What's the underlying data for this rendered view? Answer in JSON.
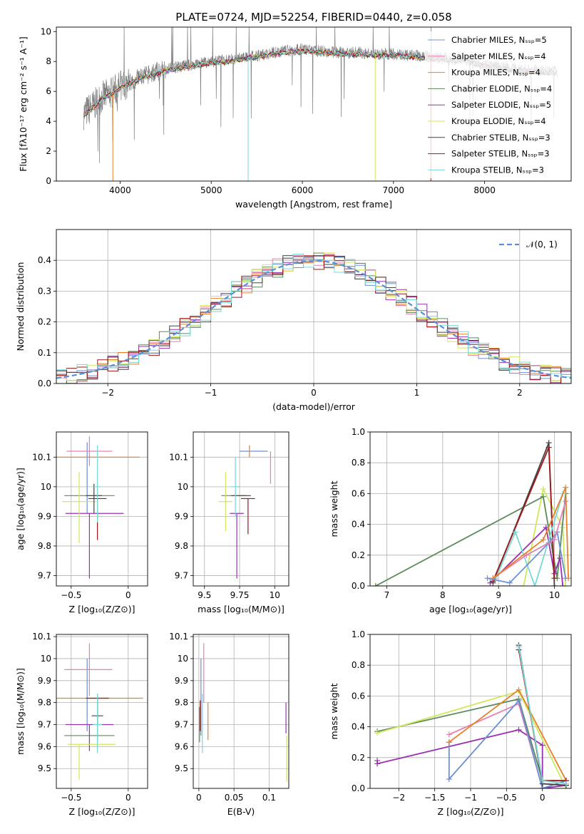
{
  "figure": {
    "title": "PLATE=0724, MJD=52254, FIBERID=0440, z=0.058"
  },
  "colors": {
    "Chabrier MILES": "#6b8fd6",
    "Salpeter MILES": "#e87fb0",
    "Kroupa MILES": "#e8802a",
    "Chabrier ELODIE": "#5b8a5b",
    "Salpeter ELODIE": "#9b30b0",
    "Kroupa ELODIE": "#cfe85a",
    "Chabrier STELIB": "#444444",
    "Salpeter STELIB": "#a01818",
    "Kroupa STELIB": "#78d8d8",
    "data": "#808080"
  },
  "chart_data": [
    {
      "id": "spectrum",
      "type": "line",
      "xlabel": "wavelength [Angstrom, rest frame]",
      "ylabel": "Flux [fλ10⁻¹⁷ erg cm⁻² s⁻¹ A⁻¹]",
      "xlim": [
        3300,
        8950
      ],
      "ylim": [
        0,
        10.3
      ],
      "xticks": [
        4000,
        5000,
        6000,
        7000,
        8000
      ],
      "yticks": [
        0,
        2,
        4,
        6,
        8,
        10
      ],
      "legend_loc": "right",
      "legend": [
        "Chabrier MILES, Nₛₛₚ=5",
        "Salpeter MILES, Nₛₛₚ=4",
        "Kroupa MILES, Nₛₛₚ=4",
        "Chabrier ELODIE, Nₛₛₚ=4",
        "Salpeter ELODIE, Nₛₛₚ=5",
        "Kroupa ELODIE, Nₛₛₚ=4",
        "Chabrier STELIB, Nₛₛₚ=3",
        "Salpeter STELIB, Nₛₛₚ=3",
        "Kroupa STELIB, Nₛₛₚ=3"
      ],
      "data_curve": {
        "x": [
          3600,
          3700,
          3800,
          3900,
          4000,
          4100,
          4200,
          4300,
          4400,
          4500,
          4600,
          4800,
          5000,
          5200,
          5400,
          5600,
          5800,
          6000,
          6200,
          6400,
          6600,
          6800,
          7000,
          7200,
          7400,
          7600,
          7800,
          8000,
          8200,
          8400,
          8600,
          8800
        ],
        "y": [
          4.5,
          5.0,
          5.6,
          5.9,
          6.3,
          6.6,
          6.9,
          7.1,
          7.3,
          7.5,
          7.6,
          7.8,
          8.0,
          8.1,
          8.3,
          8.5,
          8.7,
          8.8,
          8.7,
          8.6,
          8.6,
          8.5,
          8.5,
          8.4,
          8.3,
          8.2,
          8.1,
          7.8,
          7.6,
          7.5,
          7.4,
          7.3
        ]
      }
    },
    {
      "id": "residuals",
      "type": "bar",
      "xlabel": "(data-model)/error",
      "ylabel": "Normed distribution",
      "xlim": [
        -2.5,
        2.5
      ],
      "ylim": [
        0,
        0.5
      ],
      "xticks": [
        -2,
        -1,
        0,
        1,
        2
      ],
      "yticks": [
        0.0,
        0.1,
        0.2,
        0.3,
        0.4
      ],
      "legend": [
        "𝒩(0, 1)"
      ],
      "legend_loc": "top-right",
      "bin_width": 0.1
    },
    {
      "id": "age_vs_Z",
      "type": "scatter",
      "xlabel": "Z [log₁₀(Z/Z⊙)]",
      "ylabel": "age  [log₁₀(age/yr)]",
      "xlim": [
        -0.63,
        0.17
      ],
      "ylim": [
        9.665,
        10.185
      ],
      "xticks": [
        -0.5,
        0.0
      ],
      "yticks": [
        9.7,
        9.8,
        9.9,
        10.0,
        10.1
      ],
      "points": [
        {
          "model": "Chabrier MILES",
          "x": -0.36,
          "y": 10.03,
          "xerr": [
            0.0,
            0.0
          ],
          "yerr": [
            0.12,
            0.12
          ]
        },
        {
          "model": "Salpeter MILES",
          "x": -0.34,
          "y": 10.12,
          "xerr": [
            0.2,
            0.2
          ],
          "yerr": [
            0.05,
            0.05
          ]
        },
        {
          "model": "Kroupa MILES",
          "x": -0.27,
          "y": 10.1,
          "xerr": [
            0.37,
            0.37
          ],
          "yerr": [
            0.0,
            0.0
          ]
        },
        {
          "model": "Chabrier ELODIE",
          "x": -0.34,
          "y": 9.97,
          "xerr": [
            0.22,
            0.22
          ],
          "yerr": [
            0.0,
            0.0
          ]
        },
        {
          "model": "Salpeter ELODIE",
          "x": -0.34,
          "y": 9.91,
          "xerr": [
            0.21,
            0.3
          ],
          "yerr": [
            0.22,
            0.0
          ]
        },
        {
          "model": "Kroupa ELODIE",
          "x": -0.43,
          "y": 9.95,
          "xerr": [
            0.15,
            0.15
          ],
          "yerr": [
            0.14,
            0.1
          ]
        },
        {
          "model": "Chabrier STELIB",
          "x": -0.3,
          "y": 9.97,
          "xerr": [
            0.07,
            0.07
          ],
          "yerr": [
            0.06,
            0.04
          ]
        },
        {
          "model": "Salpeter STELIB",
          "x": -0.27,
          "y": 9.96,
          "xerr": [
            0.08,
            0.08
          ],
          "yerr": [
            0.14,
            0.0
          ]
        },
        {
          "model": "Kroupa STELIB",
          "x": -0.27,
          "y": 10.0,
          "xerr": [
            0.03,
            0.03
          ],
          "yerr": [
            0.12,
            0.14
          ]
        }
      ]
    },
    {
      "id": "age_vs_mass",
      "type": "scatter",
      "xlabel": "mass [log₁₀(M/M⊙)]",
      "ylabel": "",
      "xlim": [
        9.42,
        10.1
      ],
      "ylim": [
        9.665,
        10.185
      ],
      "xticks": [
        9.5,
        9.75,
        10.0
      ],
      "yticks": [
        9.7,
        9.8,
        9.9,
        10.0,
        10.1
      ],
      "points": [
        {
          "model": "Chabrier MILES",
          "x": 9.75,
          "y": 10.12,
          "xerr": [
            0.0,
            0.2
          ],
          "yerr": [
            0.0,
            0.0
          ]
        },
        {
          "model": "Salpeter MILES",
          "x": 9.97,
          "y": 10.06,
          "xerr": [
            0.0,
            0.0
          ],
          "yerr": [
            0.05,
            0.06
          ]
        },
        {
          "model": "Kroupa MILES",
          "x": 9.82,
          "y": 10.1,
          "xerr": [
            0.0,
            0.0
          ],
          "yerr": [
            0.0,
            0.04
          ]
        },
        {
          "model": "Chabrier ELODIE",
          "x": 9.71,
          "y": 9.97,
          "xerr": [
            0.09,
            0.09
          ],
          "yerr": [
            0.0,
            0.0
          ]
        },
        {
          "model": "Salpeter ELODIE",
          "x": 9.73,
          "y": 9.91,
          "xerr": [
            0.05,
            0.05
          ],
          "yerr": [
            0.22,
            0.0
          ]
        },
        {
          "model": "Kroupa ELODIE",
          "x": 9.65,
          "y": 9.95,
          "xerr": [
            0.05,
            0.05
          ],
          "yerr": [
            0.1,
            0.1
          ]
        },
        {
          "model": "Chabrier STELIB",
          "x": 9.76,
          "y": 9.97,
          "xerr": [
            0.07,
            0.07
          ],
          "yerr": [
            0.0,
            0.0
          ]
        },
        {
          "model": "Salpeter STELIB",
          "x": 9.81,
          "y": 9.96,
          "xerr": [
            0.05,
            0.05
          ],
          "yerr": [
            0.12,
            0.0
          ]
        },
        {
          "model": "Kroupa STELIB",
          "x": 9.72,
          "y": 10.0,
          "xerr": [
            0.03,
            0.03
          ],
          "yerr": [
            0.1,
            0.1
          ]
        }
      ]
    },
    {
      "id": "mass_weight_vs_age",
      "type": "line",
      "xlabel": "age  [log₁₀(age/yr)]",
      "ylabel": "mass weight",
      "xlim": [
        6.7,
        10.3
      ],
      "ylim": [
        0,
        1.0
      ],
      "xticks": [
        7,
        8,
        9,
        10
      ],
      "yticks": [
        0.0,
        0.2,
        0.4,
        0.6,
        0.8,
        1.0
      ],
      "series": [
        {
          "model": "Kroupa ELODIE",
          "x": [
            6.8,
            9.45,
            9.8,
            10.15,
            10.2
          ],
          "y": [
            0.0,
            0.0,
            0.63,
            0.38,
            0.0
          ]
        },
        {
          "model": "Chabrier ELODIE",
          "x": [
            6.8,
            9.8,
            10.05,
            10.2
          ],
          "y": [
            0.0,
            0.58,
            0.05,
            0.6
          ]
        },
        {
          "model": "Salpeter ELODIE",
          "x": [
            8.85,
            9.85,
            10.0,
            10.1,
            10.15
          ],
          "y": [
            0.02,
            0.38,
            0.08,
            0.18,
            0.0
          ]
        },
        {
          "model": "Chabrier STELIB",
          "x": [
            8.9,
            9.9,
            10.0
          ],
          "y": [
            0.02,
            0.93,
            0.0
          ]
        },
        {
          "model": "Salpeter STELIB",
          "x": [
            8.9,
            9.9,
            10.0
          ],
          "y": [
            0.03,
            0.9,
            0.05
          ]
        },
        {
          "model": "Kroupa STELIB",
          "x": [
            8.95,
            9.3,
            9.65,
            10.15
          ],
          "y": [
            0.05,
            0.35,
            0.0,
            0.6
          ]
        },
        {
          "model": "Chabrier MILES",
          "x": [
            8.8,
            9.2,
            9.9,
            10.05,
            10.2
          ],
          "y": [
            0.05,
            0.02,
            0.28,
            0.35,
            0.05
          ]
        },
        {
          "model": "Salpeter MILES",
          "x": [
            8.9,
            9.5,
            10.0,
            10.2
          ],
          "y": [
            0.05,
            0.2,
            0.3,
            0.55
          ]
        },
        {
          "model": "Kroupa MILES",
          "x": [
            8.9,
            9.8,
            10.2,
            10.25
          ],
          "y": [
            0.05,
            0.3,
            0.64,
            0.05
          ]
        }
      ]
    },
    {
      "id": "mass_vs_Z",
      "type": "scatter",
      "xlabel": "Z [log₁₀(Z/Z⊙)]",
      "ylabel": "mass [log₁₀(M/M⊙)]",
      "xlim": [
        -0.63,
        0.17
      ],
      "ylim": [
        9.41,
        10.11
      ],
      "xticks": [
        -0.5,
        0.0
      ],
      "yticks": [
        9.5,
        9.6,
        9.7,
        9.8,
        9.9,
        10.0,
        10.1
      ],
      "points": [
        {
          "model": "Chabrier MILES",
          "x": -0.36,
          "y": 9.82,
          "xerr": [
            0.0,
            0.0
          ],
          "yerr": [
            0.15,
            0.18
          ]
        },
        {
          "model": "Salpeter MILES",
          "x": -0.34,
          "y": 9.95,
          "xerr": [
            0.22,
            0.2
          ],
          "yerr": [
            0.12,
            0.12
          ]
        },
        {
          "model": "Kroupa MILES",
          "x": -0.27,
          "y": 9.82,
          "xerr": [
            0.37,
            0.4
          ],
          "yerr": [
            0.0,
            0.0
          ]
        },
        {
          "model": "Chabrier ELODIE",
          "x": -0.34,
          "y": 9.65,
          "xerr": [
            0.22,
            0.22
          ],
          "yerr": [
            0.0,
            0.0
          ]
        },
        {
          "model": "Salpeter ELODIE",
          "x": -0.34,
          "y": 9.7,
          "xerr": [
            0.21,
            0.21
          ],
          "yerr": [
            0.12,
            0.0
          ]
        },
        {
          "model": "Kroupa ELODIE",
          "x": -0.43,
          "y": 9.61,
          "xerr": [
            0.1,
            0.32
          ],
          "yerr": [
            0.16,
            0.0
          ]
        },
        {
          "model": "Chabrier STELIB",
          "x": -0.27,
          "y": 9.74,
          "xerr": [
            0.05,
            0.05
          ],
          "yerr": [
            0.12,
            0.1
          ]
        },
        {
          "model": "Salpeter STELIB",
          "x": -0.27,
          "y": 9.82,
          "xerr": [
            0.1,
            0.1
          ],
          "yerr": [
            0.12,
            0.0
          ]
        },
        {
          "model": "Kroupa STELIB",
          "x": -0.27,
          "y": 9.7,
          "xerr": [
            0.04,
            0.04
          ],
          "yerr": [
            0.13,
            0.14
          ]
        }
      ]
    },
    {
      "id": "mass_vs_ebv",
      "type": "scatter",
      "xlabel": "E(B-V)",
      "ylabel": "",
      "xlim": [
        -0.008,
        0.128
      ],
      "ylim": [
        9.41,
        10.11
      ],
      "xticks": [
        0.0,
        0.05,
        0.1
      ],
      "yticks": [
        9.5,
        9.6,
        9.7,
        9.8,
        9.9,
        10.0,
        10.1
      ],
      "points": [
        {
          "model": "Chabrier MILES",
          "x": 0.003,
          "y": 9.85,
          "xerr": [
            0.0,
            0.0
          ],
          "yerr": [
            0.2,
            0.15
          ]
        },
        {
          "model": "Salpeter MILES",
          "x": 0.007,
          "y": 9.95,
          "xerr": [
            0.0,
            0.0
          ],
          "yerr": [
            0.15,
            0.12
          ]
        },
        {
          "model": "Kroupa MILES",
          "x": 0.013,
          "y": 9.8,
          "xerr": [
            0.0,
            0.0
          ],
          "yerr": [
            0.17,
            0.0
          ]
        },
        {
          "model": "Chabrier ELODIE",
          "x": 0.001,
          "y": 9.7,
          "xerr": [
            0.0,
            0.0
          ],
          "yerr": [
            0.08,
            0.08
          ]
        },
        {
          "model": "Salpeter ELODIE",
          "x": 0.124,
          "y": 9.73,
          "xerr": [
            0.0,
            0.0
          ],
          "yerr": [
            0.07,
            0.07
          ]
        },
        {
          "model": "Kroupa ELODIE",
          "x": 0.125,
          "y": 9.55,
          "xerr": [
            0.0,
            0.0
          ],
          "yerr": [
            0.11,
            0.1
          ]
        },
        {
          "model": "Chabrier STELIB",
          "x": 0.002,
          "y": 9.75,
          "xerr": [
            0.0,
            0.0
          ],
          "yerr": [
            0.0,
            0.0
          ]
        },
        {
          "model": "Salpeter STELIB",
          "x": 0.002,
          "y": 9.74,
          "xerr": [
            0.0,
            0.0
          ],
          "yerr": [
            0.07,
            0.07
          ]
        },
        {
          "model": "Kroupa STELIB",
          "x": 0.005,
          "y": 9.7,
          "xerr": [
            0.0,
            0.0
          ],
          "yerr": [
            0.13,
            0.14
          ]
        }
      ]
    },
    {
      "id": "mass_weight_vs_Z",
      "type": "line",
      "xlabel": "Z [log₁₀(Z/Z⊙)]",
      "ylabel": "mass weight",
      "xlim": [
        -2.4,
        0.4
      ],
      "ylim": [
        0,
        1.0
      ],
      "xticks": [
        -2.0,
        -1.5,
        -1.0,
        -0.5,
        0.0
      ],
      "yticks": [
        0.0,
        0.2,
        0.4,
        0.6,
        0.8,
        1.0
      ],
      "series": [
        {
          "model": "Chabrier ELODIE",
          "x": [
            -2.3,
            -0.33,
            0.0,
            0.33
          ],
          "y": [
            0.37,
            0.58,
            0.05,
            0.05
          ]
        },
        {
          "model": "Kroupa ELODIE",
          "x": [
            -2.3,
            -0.33,
            0.33
          ],
          "y": [
            0.36,
            0.63,
            0.0
          ]
        },
        {
          "model": "Salpeter ELODIE",
          "x": [
            -2.3,
            -2.3,
            -0.33,
            0.0,
            0.0,
            0.33
          ],
          "y": [
            0.18,
            0.16,
            0.38,
            0.28,
            0.0,
            0.02
          ]
        },
        {
          "model": "Salpeter MILES",
          "x": [
            -1.3,
            -0.33,
            0.0,
            0.33
          ],
          "y": [
            0.35,
            0.55,
            0.0,
            0.05
          ]
        },
        {
          "model": "Chabrier MILES",
          "x": [
            -1.3,
            -1.3,
            -0.33,
            0.0,
            0.33
          ],
          "y": [
            0.3,
            0.06,
            0.57,
            0.0,
            0.05
          ]
        },
        {
          "model": "Kroupa MILES",
          "x": [
            -1.3,
            -0.33,
            0.33
          ],
          "y": [
            0.3,
            0.64,
            0.05
          ]
        },
        {
          "model": "Chabrier STELIB",
          "x": [
            -0.33,
            0.0,
            0.33
          ],
          "y": [
            0.93,
            0.03,
            0.02
          ]
        },
        {
          "model": "Salpeter STELIB",
          "x": [
            -0.33,
            0.0,
            0.33
          ],
          "y": [
            0.9,
            0.05,
            0.05
          ]
        },
        {
          "model": "Kroupa STELIB",
          "x": [
            -0.33,
            0.0,
            0.33
          ],
          "y": [
            0.92,
            0.05,
            0.03
          ]
        }
      ]
    }
  ]
}
